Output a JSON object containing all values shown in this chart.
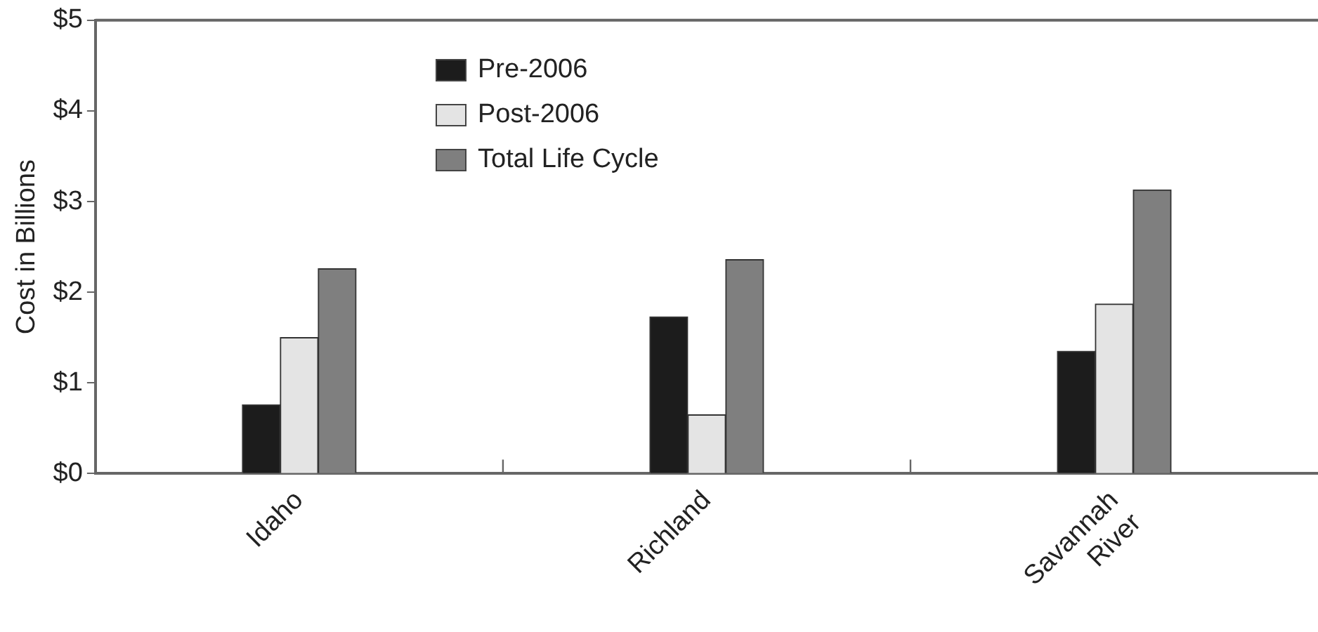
{
  "chart_data": {
    "type": "bar",
    "ylabel": "Cost in Billions",
    "categories": [
      "Idaho",
      "Richland",
      "Savannah River"
    ],
    "series": [
      {
        "name": "Pre-2006",
        "color": "#1c1c1c",
        "values": [
          0.76,
          1.73,
          1.35
        ]
      },
      {
        "name": "Post-2006",
        "color": "#e4e4e4",
        "values": [
          1.5,
          0.65,
          1.87
        ]
      },
      {
        "name": "Total Life Cycle",
        "color": "#7f7f7f",
        "values": [
          2.26,
          2.36,
          3.13
        ]
      }
    ],
    "ylim": [
      0,
      5
    ],
    "yticks": [
      {
        "value": 0,
        "label": "$0"
      },
      {
        "value": 1,
        "label": "$1"
      },
      {
        "value": 2,
        "label": "$2"
      },
      {
        "value": 3,
        "label": "$3"
      },
      {
        "value": 4,
        "label": "$4"
      },
      {
        "value": 5,
        "label": "$5"
      }
    ],
    "grid": false,
    "legend": "top left"
  }
}
